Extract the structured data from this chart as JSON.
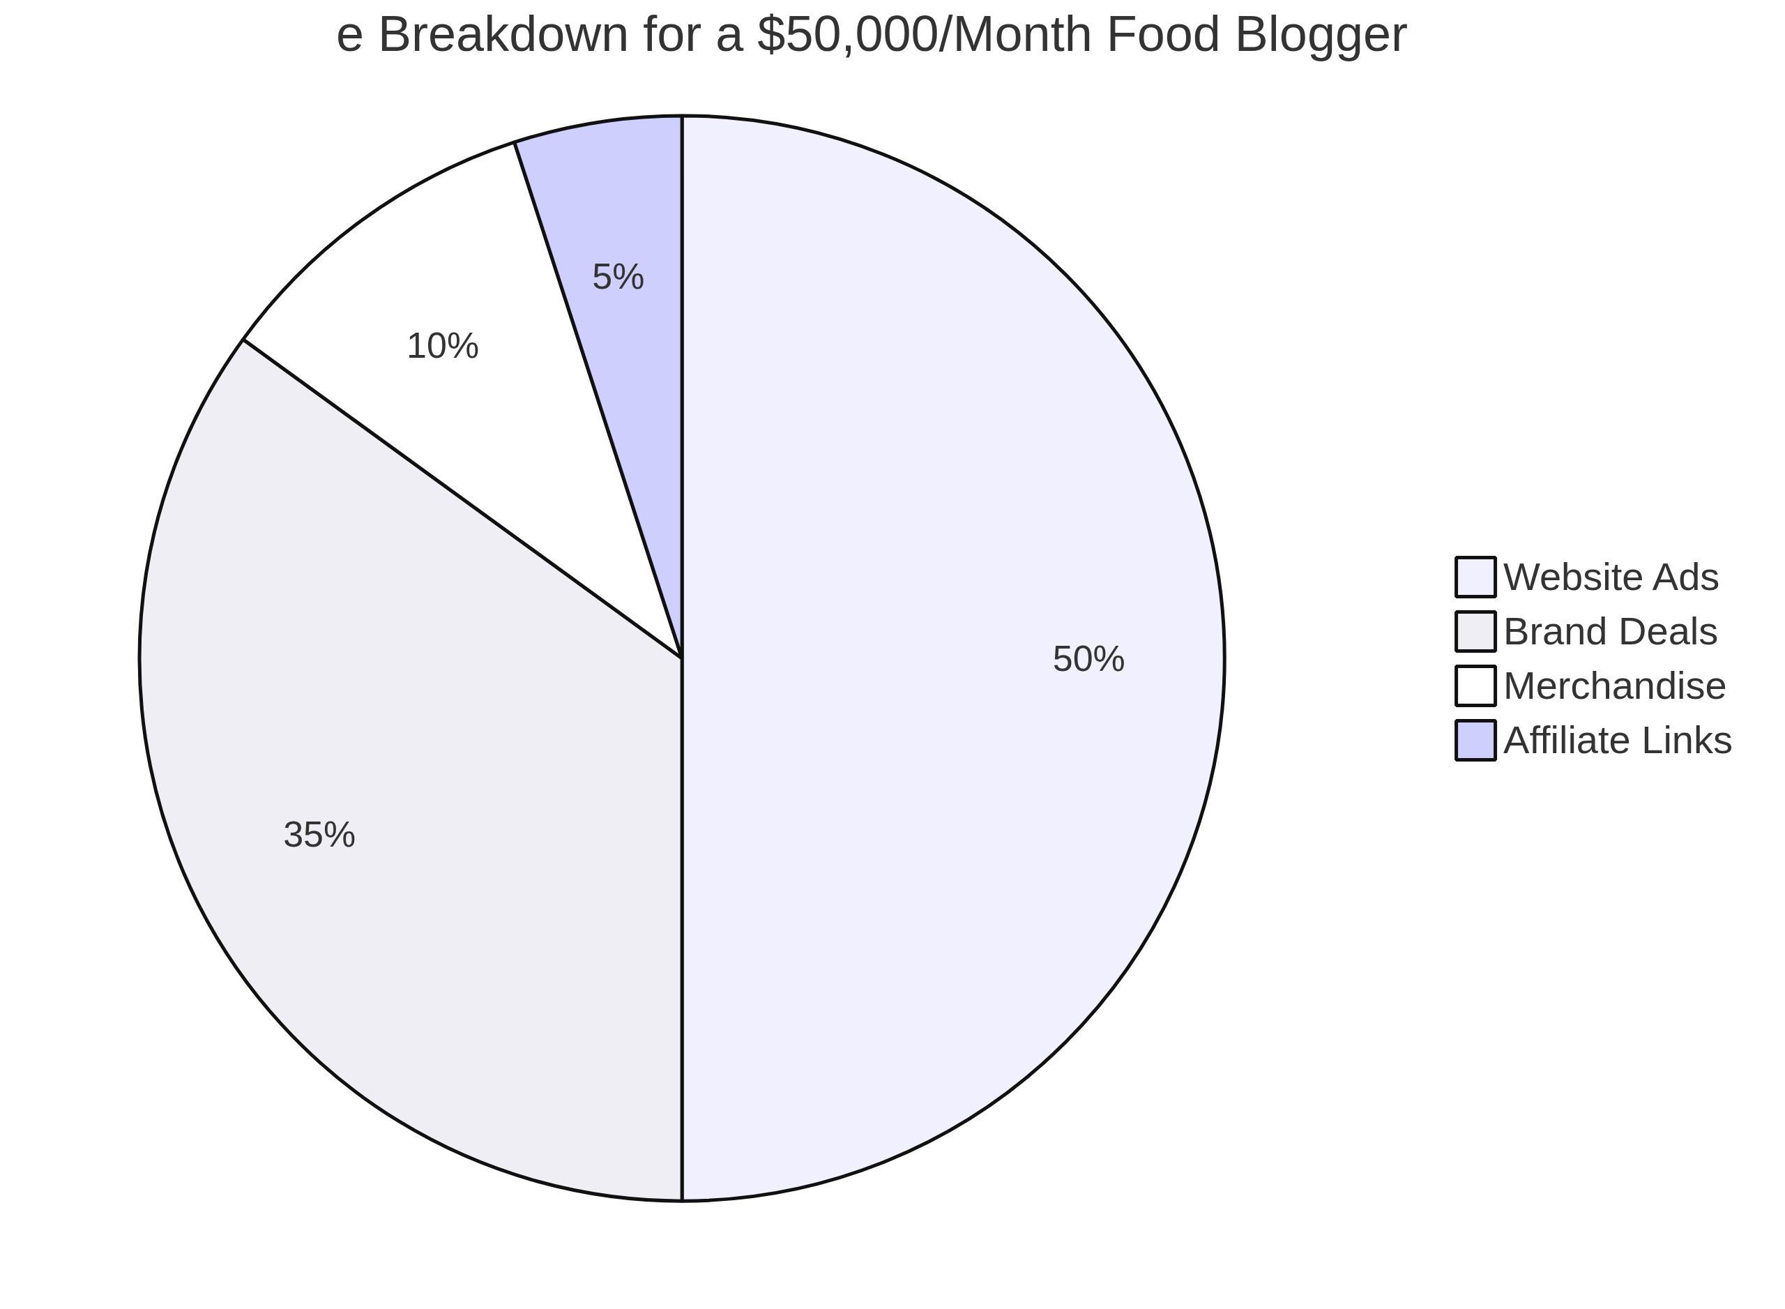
{
  "chart_data": {
    "type": "pie",
    "title": "e Breakdown for a $50,000/Month Food Blogger",
    "categories": [
      "Website Ads",
      "Brand Deals",
      "Merchandise",
      "Affiliate Links"
    ],
    "values": [
      50,
      35,
      10,
      5
    ],
    "value_labels": [
      "50%",
      "35%",
      "10%",
      "5%"
    ],
    "colors": [
      "#f0f0fe",
      "#efeef5",
      "#ffffff",
      "#cfcffd"
    ],
    "legend": "right"
  }
}
